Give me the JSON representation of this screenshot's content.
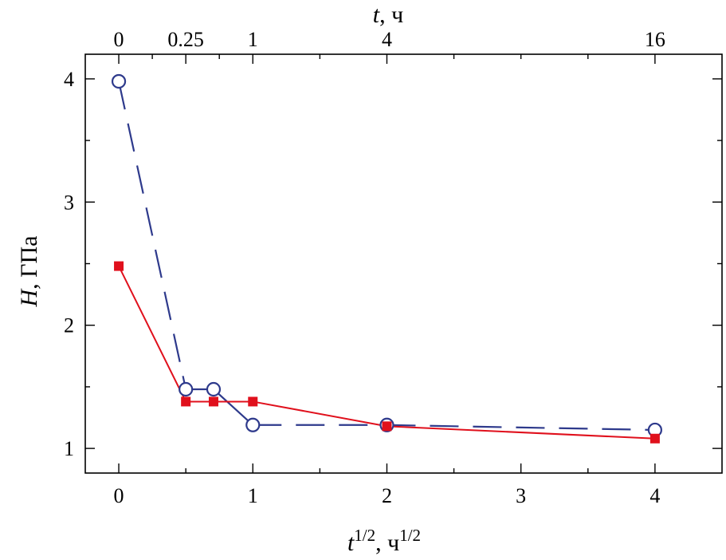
{
  "chart_data": {
    "type": "line",
    "x_top_label_var": "t",
    "x_top_label_unit": ", ч",
    "x_bottom_label_var": "t",
    "x_bottom_label_exp": "1/2",
    "x_bottom_label_unit": ", ч",
    "x_bottom_label_unit_exp": "1/2",
    "y_label_var": "H",
    "y_label_unit": ", ГПа",
    "xlim": [
      -0.25,
      4.5
    ],
    "ylim": [
      0.8,
      4.2
    ],
    "x_ticks": [
      "0",
      "1",
      "2",
      "3",
      "4"
    ],
    "y_ticks": [
      "1",
      "2",
      "3",
      "4"
    ],
    "top_ticks": [
      {
        "label": "0",
        "x": 0
      },
      {
        "label": "0.25",
        "x": 0.5
      },
      {
        "label": "1",
        "x": 1
      },
      {
        "label": "4",
        "x": 2
      },
      {
        "label": "16",
        "x": 4
      }
    ],
    "series": [
      {
        "color": "#2e3a8c",
        "marker": "open-circle",
        "line": "dashed-solid",
        "x": [
          0,
          0.5,
          0.707,
          1,
          2,
          4
        ],
        "y": [
          3.98,
          1.48,
          1.48,
          1.19,
          1.19,
          1.15
        ]
      },
      {
        "color": "#e0101c",
        "marker": "filled-square",
        "line": "solid",
        "x": [
          0,
          0.5,
          0.707,
          1,
          2,
          4
        ],
        "y": [
          2.48,
          1.38,
          1.38,
          1.38,
          1.18,
          1.08
        ]
      }
    ]
  }
}
